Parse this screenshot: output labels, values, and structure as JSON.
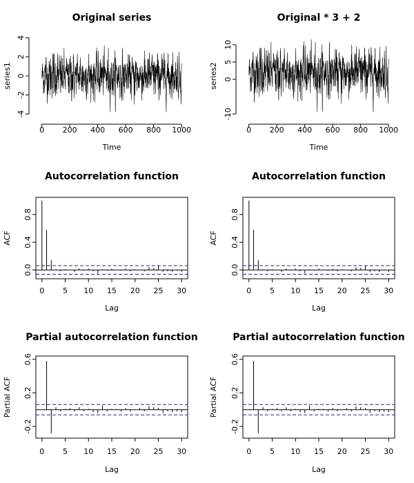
{
  "chart_data": [
    {
      "id": "ts1",
      "type": "line",
      "title": "Original series",
      "xlabel": "Time",
      "ylabel": "series1",
      "xlim": [
        1,
        1000
      ],
      "ylim": [
        -4,
        4
      ],
      "xticks": [
        0,
        200,
        400,
        600,
        800,
        1000
      ],
      "yticks": [
        -4,
        -2,
        0,
        2,
        4
      ],
      "series": [
        {
          "scale": 1,
          "offset": 0
        }
      ]
    },
    {
      "id": "ts2",
      "type": "line",
      "title": "Original * 3 + 2",
      "xlabel": "Time",
      "ylabel": "series2",
      "xlim": [
        1,
        1000
      ],
      "ylim": [
        -10,
        12
      ],
      "xticks": [
        0,
        200,
        400,
        600,
        800,
        1000
      ],
      "yticks": [
        -10,
        0,
        5,
        10
      ],
      "series": [
        {
          "scale": 3,
          "offset": 2
        }
      ]
    },
    {
      "id": "acf1",
      "type": "bar",
      "title": "Autocorrelation function",
      "xlabel": "Lag",
      "ylabel": "ACF",
      "xlim": [
        0,
        30
      ],
      "ylim": [
        -0.08,
        1.0
      ],
      "xticks": [
        0,
        5,
        10,
        15,
        20,
        25,
        30
      ],
      "yticks": [
        0.0,
        0.4,
        0.8
      ],
      "ci": 0.062,
      "lags": [
        0,
        1,
        2,
        3,
        4,
        5,
        6,
        7,
        8,
        9,
        10,
        11,
        12,
        13,
        14,
        15,
        16,
        17,
        18,
        19,
        20,
        21,
        22,
        23,
        24,
        25,
        26,
        27,
        28,
        29,
        30
      ],
      "values": [
        1.0,
        0.58,
        0.14,
        0.01,
        -0.02,
        0.01,
        0.0,
        -0.03,
        0.02,
        -0.01,
        0.02,
        -0.02,
        -0.05,
        0.01,
        -0.01,
        0.02,
        0.0,
        -0.01,
        0.02,
        -0.02,
        0.01,
        0.0,
        -0.02,
        0.04,
        0.03,
        0.06,
        -0.03,
        -0.02,
        -0.03,
        -0.01,
        -0.03
      ]
    },
    {
      "id": "acf2",
      "type": "bar",
      "title": "Autocorrelation function",
      "xlabel": "Lag",
      "ylabel": "ACF",
      "xlim": [
        0,
        30
      ],
      "ylim": [
        -0.08,
        1.0
      ],
      "xticks": [
        0,
        5,
        10,
        15,
        20,
        25,
        30
      ],
      "yticks": [
        0.0,
        0.4,
        0.8
      ],
      "ci": 0.062,
      "lags": [
        0,
        1,
        2,
        3,
        4,
        5,
        6,
        7,
        8,
        9,
        10,
        11,
        12,
        13,
        14,
        15,
        16,
        17,
        18,
        19,
        20,
        21,
        22,
        23,
        24,
        25,
        26,
        27,
        28,
        29,
        30
      ],
      "values": [
        1.0,
        0.58,
        0.14,
        0.01,
        -0.02,
        0.01,
        0.0,
        -0.03,
        0.02,
        -0.01,
        0.02,
        -0.02,
        -0.05,
        0.01,
        -0.01,
        0.02,
        0.0,
        -0.01,
        0.02,
        -0.02,
        0.01,
        0.0,
        -0.02,
        0.04,
        0.03,
        0.06,
        -0.03,
        -0.02,
        -0.03,
        -0.01,
        -0.03
      ]
    },
    {
      "id": "pacf1",
      "type": "bar",
      "title": "Partial autocorrelation function",
      "xlabel": "Lag",
      "ylabel": "Partial ACF",
      "xlim": [
        0,
        30
      ],
      "ylim": [
        -0.3,
        0.6
      ],
      "xticks": [
        0,
        5,
        10,
        15,
        20,
        25,
        30
      ],
      "yticks": [
        -0.2,
        0.2,
        0.6
      ],
      "ci": 0.062,
      "lags": [
        1,
        2,
        3,
        4,
        5,
        6,
        7,
        8,
        9,
        10,
        11,
        12,
        13,
        14,
        15,
        16,
        17,
        18,
        19,
        20,
        21,
        22,
        23,
        24,
        25,
        26,
        27,
        28,
        29,
        30
      ],
      "values": [
        0.58,
        -0.28,
        0.03,
        -0.02,
        0.01,
        0.02,
        -0.02,
        0.03,
        -0.02,
        0.01,
        -0.03,
        -0.04,
        0.05,
        -0.02,
        0.01,
        0.01,
        -0.02,
        0.02,
        -0.02,
        0.0,
        0.02,
        -0.02,
        0.04,
        0.03,
        0.02,
        -0.04,
        -0.02,
        -0.03,
        -0.02,
        -0.03
      ]
    },
    {
      "id": "pacf2",
      "type": "bar",
      "title": "Partial autocorrelation function",
      "xlabel": "Lag",
      "ylabel": "Partial ACF",
      "xlim": [
        0,
        30
      ],
      "ylim": [
        -0.3,
        0.6
      ],
      "xticks": [
        0,
        5,
        10,
        15,
        20,
        25,
        30
      ],
      "yticks": [
        -0.2,
        0.2,
        0.6
      ],
      "ci": 0.062,
      "lags": [
        1,
        2,
        3,
        4,
        5,
        6,
        7,
        8,
        9,
        10,
        11,
        12,
        13,
        14,
        15,
        16,
        17,
        18,
        19,
        20,
        21,
        22,
        23,
        24,
        25,
        26,
        27,
        28,
        29,
        30
      ],
      "values": [
        0.58,
        -0.28,
        0.03,
        -0.02,
        0.01,
        0.02,
        -0.02,
        0.03,
        -0.02,
        0.01,
        -0.03,
        -0.04,
        0.05,
        -0.02,
        0.01,
        0.01,
        -0.02,
        0.02,
        -0.02,
        0.0,
        0.02,
        -0.02,
        0.04,
        0.03,
        0.02,
        -0.04,
        -0.02,
        -0.03,
        -0.02,
        -0.03
      ]
    }
  ],
  "colors": {
    "ink": "#000000",
    "ci_line": "#1f1fa8"
  }
}
